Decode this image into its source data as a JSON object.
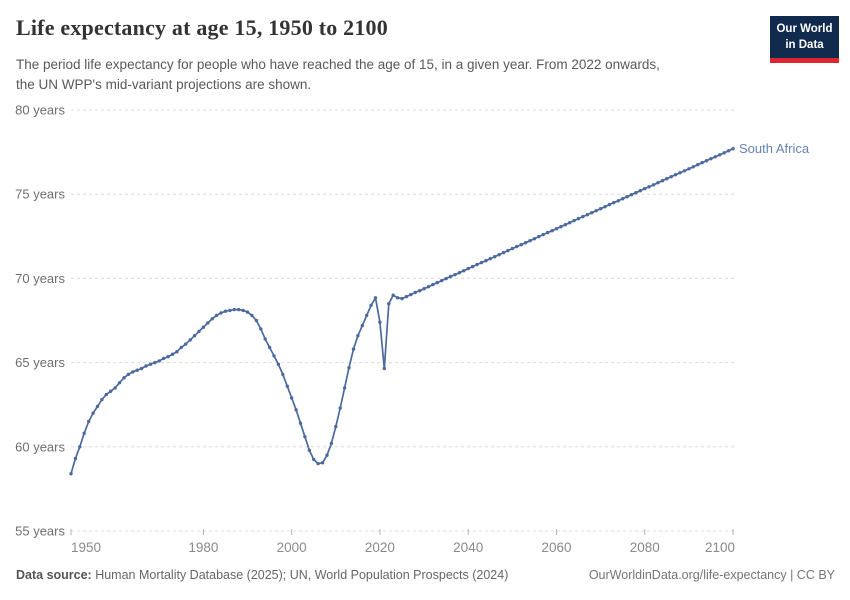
{
  "header": {
    "title": "Life expectancy at age 15, 1950 to 2100",
    "subtitle_line1": "The period life expectancy for people who have reached the age of 15, in a given year. From 2022 onwards,",
    "subtitle_line2": "the UN WPP's mid-variant projections are shown."
  },
  "logo": {
    "line1": "Our World",
    "line2": "in Data",
    "bg_color": "#112b4e",
    "bar_color": "#d92630"
  },
  "series_label": "South Africa",
  "footer": {
    "source_prefix": "Data source:",
    "source_text": " Human Mortality Database (2025); UN, World Population Prospects (2024)",
    "link_text": "OurWorldinData.org/life-expectancy | CC BY"
  },
  "chart_data": {
    "type": "line",
    "title": "Life expectancy at age 15, 1950 to 2100",
    "xlabel": "",
    "ylabel": "",
    "xlim": [
      1950,
      2100
    ],
    "ylim": [
      55,
      80
    ],
    "xticks": [
      1950,
      1980,
      2000,
      2020,
      2040,
      2060,
      2080,
      2100
    ],
    "yticks": [
      55,
      60,
      65,
      70,
      75,
      80
    ],
    "ytick_suffix": " years",
    "grid": "horizontal-dashed",
    "markers": "dots",
    "legend_position": "end-of-line-label",
    "colors": {
      "line": "#4c6a9d",
      "grid": "#dcdcdc",
      "tick": "#b3b3b3",
      "ytick_text": "#6e6e6e",
      "xtick_text": "#8a8a8a"
    },
    "series": [
      {
        "name": "South Africa",
        "color": "#4c6a9d",
        "start_year": 1950,
        "values": [
          58.4,
          59.3,
          60.0,
          60.8,
          61.5,
          62.0,
          62.4,
          62.8,
          63.1,
          63.3,
          63.5,
          63.8,
          64.1,
          64.3,
          64.45,
          64.55,
          64.65,
          64.8,
          64.9,
          65.0,
          65.1,
          65.25,
          65.35,
          65.5,
          65.65,
          65.9,
          66.1,
          66.35,
          66.6,
          66.85,
          67.1,
          67.35,
          67.6,
          67.8,
          67.95,
          68.05,
          68.1,
          68.15,
          68.15,
          68.1,
          68.0,
          67.8,
          67.5,
          67.0,
          66.4,
          65.9,
          65.4,
          64.9,
          64.3,
          63.6,
          62.9,
          62.2,
          61.4,
          60.6,
          59.8,
          59.25,
          59.0,
          59.05,
          59.5,
          60.2,
          61.2,
          62.3,
          63.5,
          64.7,
          65.8,
          66.6,
          67.2,
          67.8,
          68.4,
          68.85,
          67.4,
          64.65,
          68.5,
          69.0,
          68.85,
          68.8,
          68.92,
          69.04,
          69.16,
          69.27,
          69.39,
          69.51,
          69.63,
          69.75,
          69.87,
          69.99,
          70.11,
          70.22,
          70.34,
          70.46,
          70.58,
          70.7,
          70.82,
          70.94,
          71.05,
          71.17,
          71.29,
          71.41,
          71.53,
          71.65,
          71.77,
          71.89,
          72.0,
          72.12,
          72.24,
          72.36,
          72.48,
          72.6,
          72.72,
          72.83,
          72.95,
          73.07,
          73.19,
          73.31,
          73.43,
          73.55,
          73.67,
          73.78,
          73.9,
          74.02,
          74.14,
          74.26,
          74.38,
          74.5,
          74.61,
          74.73,
          74.85,
          74.97,
          75.09,
          75.21,
          75.33,
          75.44,
          75.56,
          75.68,
          75.8,
          75.92,
          76.04,
          76.16,
          76.27,
          76.39,
          76.51,
          76.63,
          76.75,
          76.87,
          76.99,
          77.11,
          77.22,
          77.34,
          77.46,
          77.58,
          77.7
        ]
      }
    ]
  }
}
